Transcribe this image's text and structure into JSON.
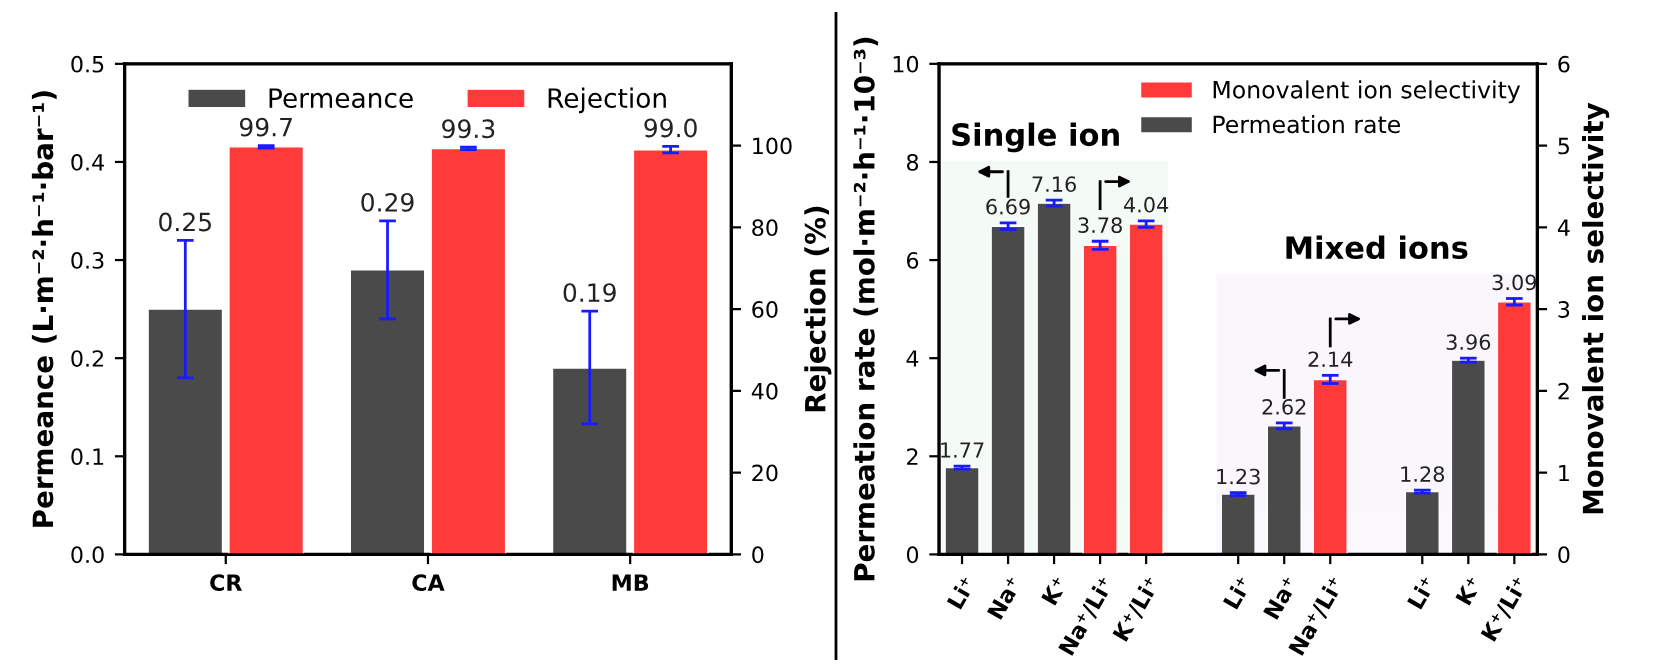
{
  "chart_data": [
    {
      "type": "bar",
      "categories": [
        "CR",
        "CA",
        "MB"
      ],
      "ylabel": "Permeance (L·m⁻²·h⁻¹·bar⁻¹)",
      "y2label": "Rejection (%)",
      "series": [
        {
          "name": "Permeance",
          "color": "#4a4a4a",
          "values": [
            0.25,
            0.29,
            0.19
          ],
          "value_labels": [
            "0.25",
            "0.29",
            "0.19"
          ],
          "errors": [
            [
              0.18,
              0.32
            ],
            [
              0.24,
              0.34
            ],
            [
              0.133,
              0.248
            ]
          ]
        },
        {
          "name": "Rejection",
          "color": "#ff3a3a",
          "axis": "y2",
          "values": [
            99.7,
            99.3,
            99.0
          ],
          "value_labels": [
            "99.7",
            "99.3",
            "99.0"
          ],
          "errors": [
            0.3,
            0.3,
            0.8
          ]
        }
      ],
      "ylim": [
        0,
        0.5
      ],
      "yticks": [
        {
          "value": 0,
          "label": "0.0"
        },
        0.1,
        0.2,
        0.3,
        0.4,
        0.5
      ],
      "y2lim": [
        0,
        120
      ],
      "y2ticks": [
        0,
        20,
        40,
        60,
        80,
        100
      ],
      "legend": "top",
      "grid": false
    },
    {
      "type": "bar",
      "categories": [
        "Li⁺",
        "Na⁺",
        "K⁺",
        "Na⁺/Li⁺",
        "K⁺/Li⁺",
        null,
        "Li⁺",
        "Na⁺",
        "Na⁺/Li⁺",
        null,
        "Li⁺",
        "K⁺",
        "K⁺/Li⁺"
      ],
      "ylabel": "Permeation rate (mol·m⁻²·h⁻¹·10⁻³)",
      "y2label": "Monovalent ion selectivity",
      "series": [
        {
          "name": "Monovalent ion selectivity",
          "color": "#ff3a3a",
          "axis": "y2",
          "values": [
            null,
            null,
            null,
            3.78,
            4.04,
            null,
            null,
            null,
            2.14,
            null,
            null,
            null,
            3.09
          ],
          "errors": [
            null,
            null,
            null,
            0.05,
            0.04,
            null,
            null,
            null,
            0.05,
            null,
            null,
            null,
            0.04
          ]
        },
        {
          "name": "Permeation rate",
          "color": "#4a4a4a",
          "values": [
            1.77,
            6.69,
            7.16,
            null,
            null,
            null,
            1.23,
            2.62,
            null,
            null,
            1.28,
            3.96,
            null
          ],
          "errors": [
            0.03,
            0.07,
            0.06,
            null,
            null,
            null,
            0.03,
            0.06,
            null,
            null,
            0.03,
            0.04,
            null
          ]
        }
      ],
      "ylim": [
        0,
        10
      ],
      "yticks": [
        0,
        2,
        4,
        6,
        8,
        10
      ],
      "y2lim": [
        0,
        6
      ],
      "y2ticks": [
        0,
        1,
        2,
        3,
        4,
        5,
        6
      ],
      "annotations": [
        "Single ion",
        "Mixed ions"
      ],
      "data_labels": true,
      "legend": "top right",
      "grid": false
    }
  ]
}
